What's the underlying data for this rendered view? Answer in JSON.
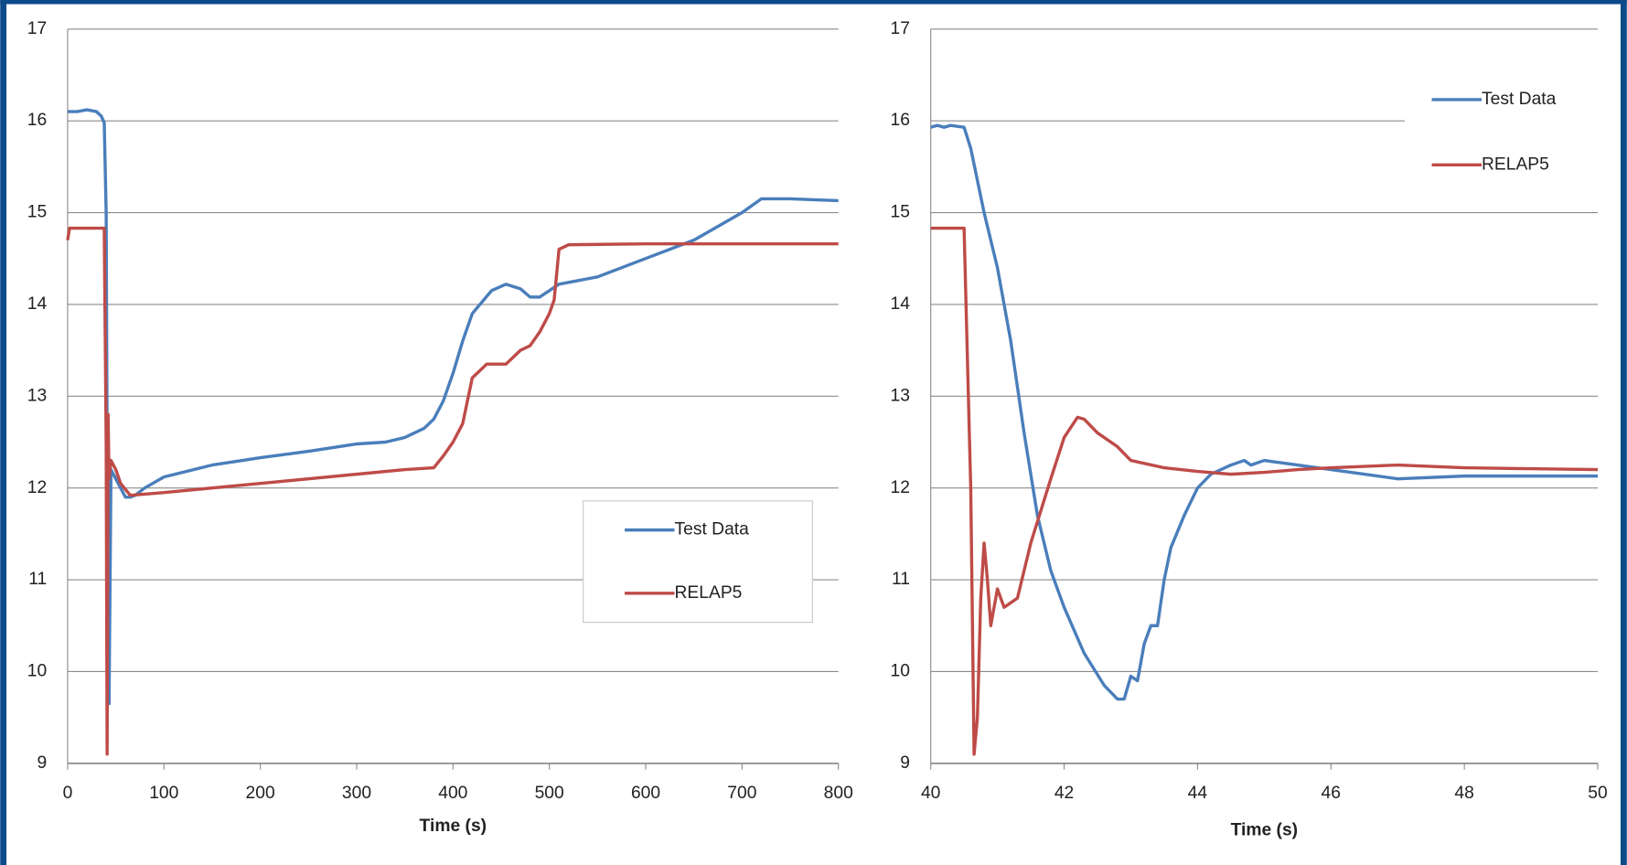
{
  "chart_data": [
    {
      "type": "line",
      "x_label": "Time (s)",
      "xlim": [
        0,
        800
      ],
      "xticks": [
        0,
        100,
        200,
        300,
        400,
        500,
        600,
        700,
        800
      ],
      "ylim": [
        9,
        17
      ],
      "yticks": [
        9,
        10,
        11,
        12,
        13,
        14,
        15,
        16,
        17
      ],
      "grid": true,
      "legend": "lower right",
      "legend_box": true,
      "series": [
        {
          "name": "Test Data",
          "color": "#4a7ebb",
          "x": [
            0,
            10,
            20,
            30,
            35,
            38,
            40,
            41,
            42,
            43,
            45,
            50,
            55,
            60,
            65,
            70,
            80,
            100,
            150,
            200,
            250,
            300,
            330,
            350,
            370,
            380,
            390,
            400,
            410,
            420,
            440,
            455,
            470,
            480,
            490,
            500,
            510,
            550,
            600,
            650,
            700,
            720,
            750,
            800
          ],
          "values": [
            16.1,
            16.1,
            16.12,
            16.1,
            16.05,
            15.98,
            15.0,
            12.5,
            10.5,
            9.65,
            12.2,
            12.1,
            12.0,
            11.9,
            11.9,
            11.92,
            12.0,
            12.12,
            12.25,
            12.33,
            12.4,
            12.48,
            12.5,
            12.55,
            12.65,
            12.75,
            12.95,
            13.25,
            13.6,
            13.9,
            14.15,
            14.22,
            14.17,
            14.08,
            14.08,
            14.15,
            14.22,
            14.3,
            14.5,
            14.7,
            15.0,
            15.15,
            15.15,
            15.13
          ]
        },
        {
          "name": "RELAP5",
          "color": "#be4b48",
          "x": [
            0,
            2,
            38,
            40,
            41,
            42,
            43,
            45,
            50,
            55,
            65,
            100,
            200,
            300,
            350,
            380,
            390,
            400,
            410,
            420,
            435,
            455,
            470,
            480,
            490,
            500,
            505,
            510,
            520,
            600,
            800
          ],
          "values": [
            14.7,
            14.83,
            14.83,
            12.5,
            9.1,
            12.8,
            12.1,
            12.3,
            12.2,
            12.05,
            11.92,
            11.95,
            12.05,
            12.15,
            12.2,
            12.22,
            12.35,
            12.5,
            12.7,
            13.2,
            13.35,
            13.35,
            13.5,
            13.55,
            13.7,
            13.9,
            14.05,
            14.6,
            14.65,
            14.66,
            14.66
          ]
        }
      ]
    },
    {
      "type": "line",
      "x_label": "Time (s)",
      "xlim": [
        40,
        50
      ],
      "xticks": [
        40,
        42,
        44,
        46,
        48,
        50
      ],
      "ylim": [
        9,
        17
      ],
      "yticks": [
        9,
        10,
        11,
        12,
        13,
        14,
        15,
        16,
        17
      ],
      "grid": true,
      "legend": "upper right",
      "legend_box": false,
      "series": [
        {
          "name": "Test Data",
          "color": "#4a7ebb",
          "x": [
            40,
            40.1,
            40.2,
            40.3,
            40.5,
            40.6,
            40.8,
            41,
            41.2,
            41.4,
            41.6,
            41.8,
            42,
            42.3,
            42.6,
            42.8,
            42.9,
            43,
            43.1,
            43.2,
            43.3,
            43.4,
            43.5,
            43.6,
            43.8,
            44,
            44.2,
            44.5,
            44.7,
            44.8,
            45,
            45.5,
            46,
            46.5,
            47,
            48,
            50
          ],
          "values": [
            15.93,
            15.95,
            15.93,
            15.95,
            15.93,
            15.7,
            15.0,
            14.4,
            13.6,
            12.6,
            11.7,
            11.1,
            10.7,
            10.2,
            9.85,
            9.7,
            9.7,
            9.95,
            9.9,
            10.3,
            10.5,
            10.5,
            11.0,
            11.35,
            11.7,
            12.0,
            12.15,
            12.25,
            12.3,
            12.25,
            12.3,
            12.25,
            12.2,
            12.15,
            12.1,
            12.13,
            12.13
          ]
        },
        {
          "name": "RELAP5",
          "color": "#be4b48",
          "x": [
            40,
            40.5,
            40.6,
            40.65,
            40.7,
            40.75,
            40.8,
            40.85,
            40.9,
            41,
            41.1,
            41.3,
            41.5,
            41.8,
            42,
            42.2,
            42.3,
            42.5,
            42.8,
            43,
            43.5,
            44,
            44.5,
            45,
            45.5,
            46,
            47,
            48,
            50
          ],
          "values": [
            14.83,
            14.83,
            12.0,
            9.1,
            9.5,
            10.8,
            11.4,
            11.0,
            10.5,
            10.9,
            10.7,
            10.8,
            11.4,
            12.1,
            12.55,
            12.77,
            12.75,
            12.6,
            12.45,
            12.3,
            12.22,
            12.18,
            12.15,
            12.17,
            12.2,
            12.22,
            12.25,
            12.22,
            12.2
          ]
        }
      ]
    }
  ]
}
